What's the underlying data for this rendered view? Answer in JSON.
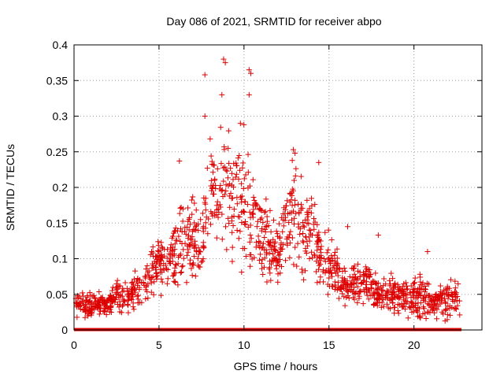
{
  "chart_data": {
    "type": "scatter",
    "title": "Day 086 of 2021, SRMTID for receiver abpo",
    "xlabel": "GPS time / hours",
    "ylabel": "SRMTID / TECUs",
    "xlim": [
      0,
      24
    ],
    "ylim": [
      0,
      0.4
    ],
    "xticks": [
      0,
      5,
      10,
      15,
      20
    ],
    "yticks": [
      0,
      0.05,
      0.1,
      0.15,
      0.2,
      0.25,
      0.3,
      0.35,
      0.4
    ],
    "xtick_labels": [
      "0",
      "5",
      "10",
      "15",
      "20"
    ],
    "ytick_labels": [
      "0",
      "0.05",
      "0.1",
      "0.15",
      "0.2",
      "0.25",
      "0.3",
      "0.35",
      "0.4"
    ],
    "grid": true,
    "marker": "plus",
    "color": "#dd0000",
    "zero_marker": "square",
    "series": [
      {
        "name": "SRMTID",
        "profile_x": [
          0,
          1,
          2,
          2.5,
          3,
          4,
          5,
          5.5,
          6,
          6.5,
          7,
          7.5,
          8,
          8.5,
          9,
          9.5,
          10,
          10.5,
          11,
          11.5,
          12,
          12.5,
          13,
          13.5,
          14,
          14.5,
          15,
          16,
          17,
          17.5,
          18,
          19,
          20,
          20.5,
          21,
          22,
          22.7
        ],
        "profile_center": [
          0.035,
          0.035,
          0.035,
          0.05,
          0.045,
          0.06,
          0.1,
          0.09,
          0.11,
          0.12,
          0.13,
          0.12,
          0.2,
          0.17,
          0.22,
          0.19,
          0.19,
          0.15,
          0.14,
          0.12,
          0.11,
          0.14,
          0.18,
          0.14,
          0.15,
          0.1,
          0.09,
          0.06,
          0.07,
          0.065,
          0.05,
          0.045,
          0.045,
          0.05,
          0.04,
          0.04,
          0.05
        ],
        "profile_spread": [
          0.012,
          0.012,
          0.012,
          0.02,
          0.015,
          0.025,
          0.03,
          0.03,
          0.04,
          0.04,
          0.04,
          0.04,
          0.07,
          0.06,
          0.08,
          0.06,
          0.08,
          0.05,
          0.05,
          0.04,
          0.03,
          0.05,
          0.06,
          0.05,
          0.05,
          0.03,
          0.03,
          0.02,
          0.025,
          0.025,
          0.02,
          0.02,
          0.02,
          0.03,
          0.015,
          0.02,
          0.02
        ],
        "peaks": [
          {
            "x": 7.7,
            "y": 0.358
          },
          {
            "x": 8.8,
            "y": 0.38
          },
          {
            "x": 8.9,
            "y": 0.375
          },
          {
            "x": 10.3,
            "y": 0.365
          },
          {
            "x": 10.4,
            "y": 0.36
          },
          {
            "x": 10.3,
            "y": 0.33
          },
          {
            "x": 8.7,
            "y": 0.33
          },
          {
            "x": 7.7,
            "y": 0.3
          },
          {
            "x": 12.9,
            "y": 0.253
          },
          {
            "x": 13.0,
            "y": 0.248
          },
          {
            "x": 14.4,
            "y": 0.235
          },
          {
            "x": 6.2,
            "y": 0.237
          },
          {
            "x": 17.9,
            "y": 0.133
          },
          {
            "x": 16.1,
            "y": 0.145
          },
          {
            "x": 20.8,
            "y": 0.11
          }
        ],
        "zero_x_range": [
          0.1,
          22.7
        ],
        "zero_count": 150
      }
    ]
  }
}
